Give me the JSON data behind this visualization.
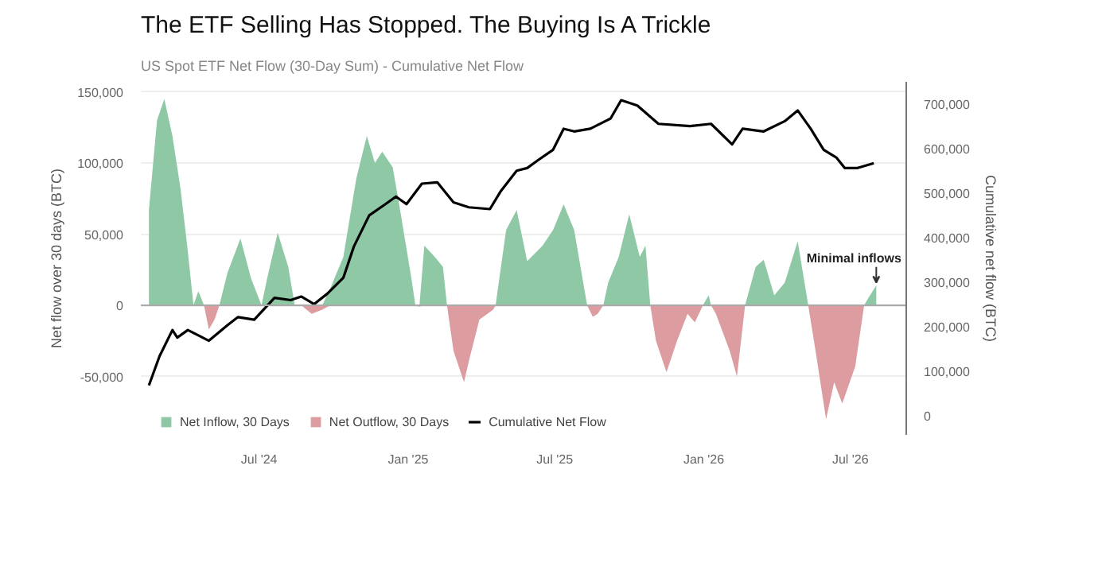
{
  "chart_data": {
    "type": "area",
    "title": "The ETF Selling Has Stopped. The Buying Is A Trickle",
    "subtitle": "US Spot ETF Net Flow (30-Day Sum) - Cumulative Net Flow",
    "ylabel": "Net flow over 30 days (BTC)",
    "y2label": "Cumulative net flow (BTC)",
    "xlim": [
      "2024-02-06",
      "2026-09-08"
    ],
    "xticks": [
      {
        "value": "2024-07-01",
        "label": "Jul '24"
      },
      {
        "value": "2025-01-01",
        "label": "Jan '25"
      },
      {
        "value": "2025-07-01",
        "label": "Jul '25"
      },
      {
        "value": "2026-01-01",
        "label": "Jan '26"
      },
      {
        "value": "2026-07-01",
        "label": "Jul '26"
      }
    ],
    "ylim": [
      -91000,
      157000
    ],
    "yticks": [
      {
        "value": -50000,
        "label": "-50,000"
      },
      {
        "value": 0,
        "label": "0"
      },
      {
        "value": 50000,
        "label": "50,000"
      },
      {
        "value": 100000,
        "label": "100,000"
      },
      {
        "value": 150000,
        "label": "150,000"
      }
    ],
    "y2lim": [
      -42000,
      749000
    ],
    "y2ticks": [
      {
        "value": 0,
        "label": "0"
      },
      {
        "value": 100000,
        "label": "100,000"
      },
      {
        "value": 200000,
        "label": "200,000"
      },
      {
        "value": 300000,
        "label": "300,000"
      },
      {
        "value": 400000,
        "label": "400,000"
      },
      {
        "value": 500000,
        "label": "500,000"
      },
      {
        "value": 600000,
        "label": "600,000"
      },
      {
        "value": 700000,
        "label": "700,000"
      }
    ],
    "grid": "y",
    "legend": "bottom left",
    "annotations": [
      {
        "text": "Minimal inflows",
        "x": "2026-08-02",
        "y": 14000
      }
    ],
    "x": [
      "2024-02-16",
      "2024-02-26",
      "2024-03-06",
      "2024-03-16",
      "2024-03-26",
      "2024-04-04",
      "2024-04-11",
      "2024-04-17",
      "2024-04-24",
      "2024-04-30",
      "2024-05-07",
      "2024-05-13",
      "2024-05-23",
      "2024-06-08",
      "2024-06-21",
      "2024-07-04",
      "2024-07-11",
      "2024-07-24",
      "2024-08-06",
      "2024-08-14",
      "2024-08-22",
      "2024-09-04",
      "2024-09-17",
      "2024-09-27",
      "2024-10-13",
      "2024-10-29",
      "2024-11-11",
      "2024-11-21",
      "2024-11-30",
      "2024-12-13",
      "2024-12-23",
      "2025-01-05",
      "2025-01-10",
      "2025-01-15",
      "2025-01-21",
      "2025-02-03",
      "2025-02-13",
      "2025-02-18",
      "2025-02-26",
      "2025-03-11",
      "2025-03-17",
      "2025-03-30",
      "2025-04-16",
      "2025-04-19",
      "2025-05-02",
      "2025-05-15",
      "2025-05-28",
      "2025-06-16",
      "2025-06-29",
      "2025-07-12",
      "2025-07-25",
      "2025-08-10",
      "2025-08-17",
      "2025-08-23",
      "2025-08-30",
      "2025-09-05",
      "2025-09-18",
      "2025-10-01",
      "2025-10-14",
      "2025-10-21",
      "2025-10-27",
      "2025-11-03",
      "2025-11-16",
      "2025-11-29",
      "2025-12-12",
      "2025-12-21",
      "2025-12-31",
      "2026-01-07",
      "2026-01-10",
      "2026-01-16",
      "2026-02-02",
      "2026-02-11",
      "2026-02-21",
      "2026-03-06",
      "2026-03-16",
      "2026-03-29",
      "2026-04-11",
      "2026-04-27",
      "2026-05-10",
      "2026-05-19",
      "2026-06-01",
      "2026-06-11",
      "2026-06-21",
      "2026-07-07",
      "2026-07-18",
      "2026-07-23",
      "2026-08-02"
    ],
    "series": [
      {
        "name": "Net Inflow, 30 Days",
        "color": "#8ec8a4",
        "values": [
          67000,
          130000,
          145000,
          119000,
          82000,
          38000,
          0,
          10000,
          0,
          0,
          0,
          0,
          23000,
          47000,
          19000,
          0,
          19000,
          51000,
          27000,
          0,
          0,
          0,
          0,
          12000,
          34000,
          89000,
          119000,
          100000,
          108000,
          97000,
          64000,
          19000,
          0,
          0,
          42000,
          34000,
          27000,
          0,
          0,
          0,
          0,
          0,
          0,
          0,
          53000,
          67000,
          31000,
          42000,
          53000,
          71000,
          53000,
          0,
          0,
          0,
          0,
          16000,
          34000,
          64000,
          34000,
          42000,
          0,
          0,
          0,
          0,
          0,
          0,
          0,
          7000,
          0,
          0,
          0,
          0,
          0,
          27000,
          32000,
          7000,
          16000,
          45000,
          0,
          0,
          0,
          0,
          0,
          0,
          0,
          5000,
          14000
        ]
      },
      {
        "name": "Net Outflow, 30 Days",
        "color": "#dc9ca0",
        "values": [
          0,
          0,
          0,
          0,
          0,
          0,
          0,
          0,
          0,
          -17000,
          -10000,
          0,
          0,
          0,
          0,
          0,
          0,
          0,
          0,
          0,
          0,
          -6000,
          -3000,
          0,
          0,
          0,
          0,
          0,
          0,
          0,
          0,
          0,
          0,
          -1000,
          0,
          0,
          0,
          0,
          -32000,
          -54000,
          -39000,
          -10000,
          -3000,
          0,
          0,
          0,
          0,
          0,
          0,
          0,
          0,
          0,
          -8000,
          -6000,
          0,
          0,
          0,
          0,
          0,
          0,
          0,
          -25000,
          -47000,
          -25000,
          -6000,
          -12000,
          0,
          0,
          0,
          -6000,
          -32000,
          -50000,
          0,
          0,
          0,
          0,
          0,
          0,
          0,
          -32000,
          -80000,
          -54000,
          -69000,
          -43000,
          0,
          0,
          0
        ]
      },
      {
        "name": "Cumulative Net Flow",
        "type": "line",
        "axis": "y2",
        "color": "#000000",
        "x": [
          "2024-02-16",
          "2024-02-29",
          "2024-03-16",
          "2024-03-22",
          "2024-04-04",
          "2024-04-30",
          "2024-05-23",
          "2024-06-05",
          "2024-06-25",
          "2024-07-20",
          "2024-08-09",
          "2024-08-22",
          "2024-09-07",
          "2024-09-23",
          "2024-10-13",
          "2024-10-26",
          "2024-11-14",
          "2024-12-04",
          "2024-12-17",
          "2024-12-30",
          "2025-01-18",
          "2025-02-06",
          "2025-02-26",
          "2025-03-17",
          "2025-04-12",
          "2025-04-25",
          "2025-05-15",
          "2025-05-28",
          "2025-06-10",
          "2025-06-29",
          "2025-07-12",
          "2025-07-25",
          "2025-08-14",
          "2025-09-08",
          "2025-09-21",
          "2025-10-11",
          "2025-11-06",
          "2025-12-15",
          "2026-01-10",
          "2026-02-05",
          "2026-02-18",
          "2026-03-16",
          "2026-04-11",
          "2026-04-27",
          "2026-05-13",
          "2026-05-29",
          "2026-06-14",
          "2026-06-24",
          "2026-07-10",
          "2026-07-30"
        ],
        "values": [
          69000,
          134000,
          193000,
          176000,
          193000,
          169000,
          204000,
          222000,
          216000,
          265000,
          260000,
          268000,
          251000,
          274000,
          310000,
          380000,
          450000,
          475000,
          492000,
          475000,
          521000,
          524000,
          479000,
          468000,
          464000,
          503000,
          550000,
          556000,
          573000,
          597000,
          644000,
          638000,
          644000,
          667000,
          708000,
          696000,
          655000,
          650000,
          655000,
          609000,
          644000,
          638000,
          661000,
          685000,
          644000,
          597000,
          579000,
          556000,
          556000,
          567000
        ]
      }
    ]
  }
}
